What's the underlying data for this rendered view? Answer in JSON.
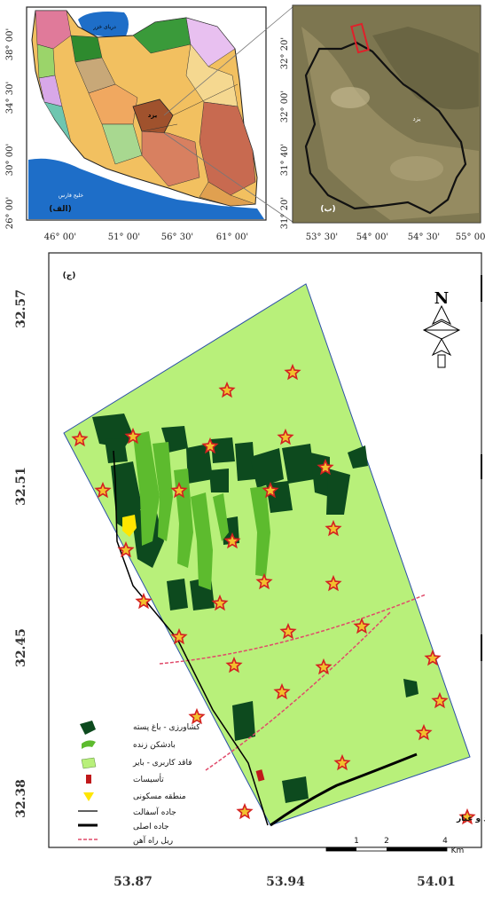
{
  "panels": {
    "a_label": "(الف)",
    "b_label": "(ب)",
    "c_label": "(ج)"
  },
  "panel_a": {
    "lat_labels": [
      "38° 00'",
      "34° 30'",
      "30° 00'",
      "26° 00'"
    ],
    "lon_labels": [
      "46° 00'",
      "51° 00'",
      "56° 30'",
      "61° 00'"
    ],
    "sea_north": "دریای خزر",
    "sea_south": "خلیج فارس",
    "province": "یزد"
  },
  "panel_b": {
    "lat_labels": [
      "32° 20'",
      "32° 00'",
      "31° 40'",
      "31° 20'"
    ],
    "lon_labels": [
      "53° 30'",
      "54° 00'",
      "54° 30'",
      "55° 00'"
    ],
    "city": "یزد"
  },
  "panel_c": {
    "lat_labels": [
      "32.57",
      "32.51",
      "32.45",
      "32.38"
    ],
    "lon_labels": [
      "53.87",
      "53.94",
      "54.01"
    ],
    "north_letter": "N",
    "scale_ticks": [
      "1",
      "2",
      "4"
    ],
    "scale_unit": "Km",
    "sampling_legend": "نقاط نمونه برداری گرد و غبار",
    "legend": [
      {
        "key": "agri",
        "label": "کشاورزی - باغ پسته",
        "color": "#0d4a1e"
      },
      {
        "key": "windbreak",
        "label": "بادشکن زنده",
        "color": "#5dbb2e"
      },
      {
        "key": "barren",
        "label": "فاقد کاربری - بایر",
        "color": "#b8f07a"
      },
      {
        "key": "facilities",
        "label": "تأسیسات",
        "color": "#c0181a"
      },
      {
        "key": "residential",
        "label": "منطقه مسکونی",
        "color": "#ffe600"
      },
      {
        "key": "asphalt",
        "label": "جاده آسفالت",
        "color": "#000000"
      },
      {
        "key": "mainroad",
        "label": "جاده اصلی",
        "color": "#000000"
      },
      {
        "key": "railway",
        "label": "ریل راه آهن",
        "color": "#e04a6a"
      }
    ],
    "colors": {
      "base": "#b8f07a",
      "dark": "#0d4a1e",
      "mid": "#5dbb2e",
      "star_fill": "#f2c12e",
      "star_stroke": "#d42020"
    }
  }
}
